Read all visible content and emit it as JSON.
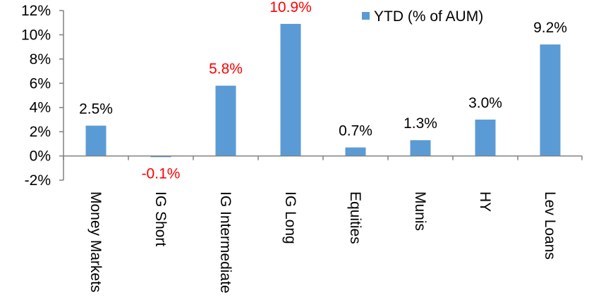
{
  "chart_data": {
    "type": "bar",
    "categories": [
      "Money Markets",
      "IG Short",
      "IG Intermediate",
      "IG Long",
      "Equities",
      "Munis",
      "HY",
      "Lev Loans"
    ],
    "series": [
      {
        "name": "YTD (% of AUM)",
        "values": [
          2.5,
          -0.1,
          5.8,
          10.9,
          0.7,
          1.3,
          3.0,
          9.2
        ],
        "color": "#5b9bd5"
      }
    ],
    "data_labels": [
      "2.5%",
      "-0.1%",
      "5.8%",
      "10.9%",
      "0.7%",
      "1.3%",
      "3.0%",
      "9.2%"
    ],
    "data_label_colors": [
      "#000000",
      "#ff0000",
      "#ff0000",
      "#ff0000",
      "#000000",
      "#000000",
      "#000000",
      "#000000"
    ],
    "y_ticks": [
      -2,
      0,
      2,
      4,
      6,
      8,
      10,
      12
    ],
    "y_tick_labels": [
      "-2%",
      "0%",
      "2%",
      "4%",
      "6%",
      "8%",
      "10%",
      "12%"
    ],
    "ylim": [
      -2,
      12
    ],
    "grid": false,
    "legend_position": "top-right",
    "title": "",
    "xlabel": "",
    "ylabel": ""
  }
}
